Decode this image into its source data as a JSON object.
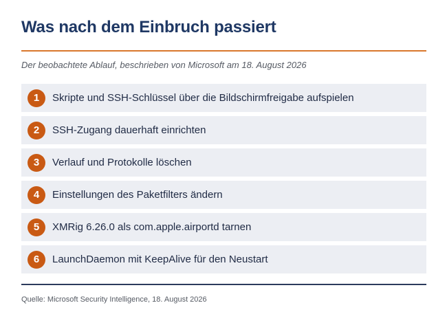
{
  "header": {
    "title": "Was nach dem Einbruch passiert",
    "subtitle": "Der beobachtete Ablauf, beschrieben von Microsoft am 18. August 2026"
  },
  "steps": [
    {
      "number": "1",
      "text": "Skripte und SSH-Schlüssel über die Bildschirmfreigabe aufspielen"
    },
    {
      "number": "2",
      "text": "SSH-Zugang dauerhaft einrichten"
    },
    {
      "number": "3",
      "text": "Verlauf und Protokolle löschen"
    },
    {
      "number": "4",
      "text": "Einstellungen des Paketfilters ändern"
    },
    {
      "number": "5",
      "text": "XMRig 6.26.0 als com.apple.airportd tarnen"
    },
    {
      "number": "6",
      "text": "LaunchDaemon mit KeepAlive für den Neustart"
    }
  ],
  "footer": {
    "source": "Quelle: Microsoft Security Intelligence, 18. August 2026"
  },
  "colors": {
    "title": "#1f3864",
    "accent_rule": "#d9772b",
    "badge": "#c95a14",
    "row_background": "#eceef3",
    "bottom_rule": "#2b3a5c"
  }
}
